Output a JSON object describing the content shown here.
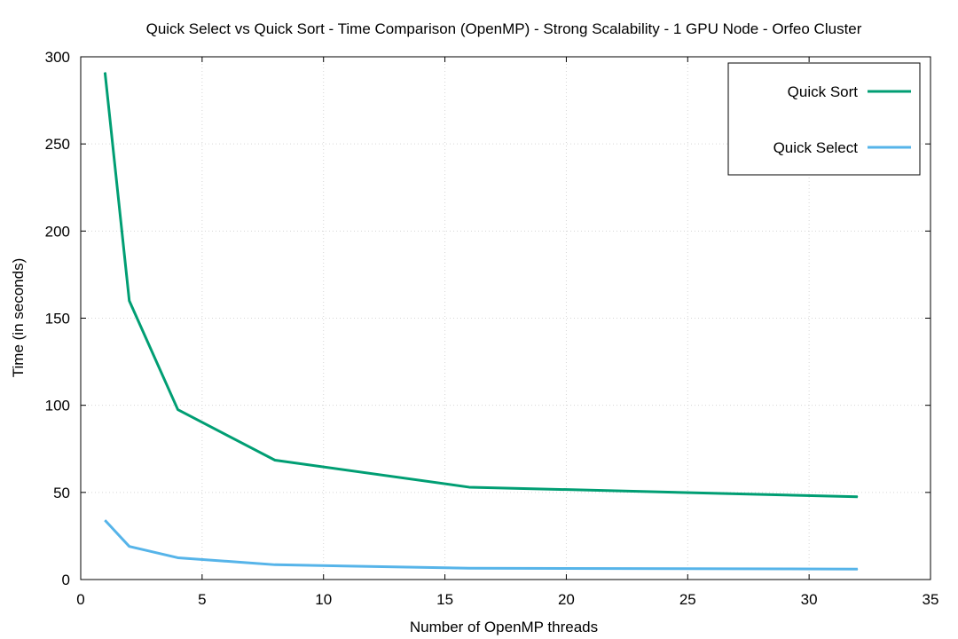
{
  "chart_data": {
    "type": "line",
    "title": "Quick Select vs Quick Sort - Time Comparison (OpenMP) - Strong Scalability - 1 GPU Node - Orfeo Cluster",
    "xlabel": "Number of OpenMP threads",
    "ylabel": "Time (in seconds)",
    "xlim": [
      0,
      35
    ],
    "ylim": [
      0,
      300
    ],
    "xticks": [
      "0",
      "5",
      "10",
      "15",
      "20",
      "25",
      "30",
      "35"
    ],
    "yticks": [
      "0",
      "50",
      "100",
      "150",
      "200",
      "250",
      "300"
    ],
    "grid": true,
    "legend_position": "top-right",
    "series": [
      {
        "name": "Quick Sort",
        "color": "#009e73",
        "x": [
          1,
          2,
          4,
          8,
          16,
          32
        ],
        "y": [
          291,
          160,
          97.5,
          68.5,
          53,
          47.5
        ]
      },
      {
        "name": "Quick Select",
        "color": "#56b4e9",
        "x": [
          1,
          2,
          4,
          8,
          16,
          32
        ],
        "y": [
          34,
          19,
          12.5,
          8.5,
          6.5,
          6
        ]
      }
    ]
  }
}
